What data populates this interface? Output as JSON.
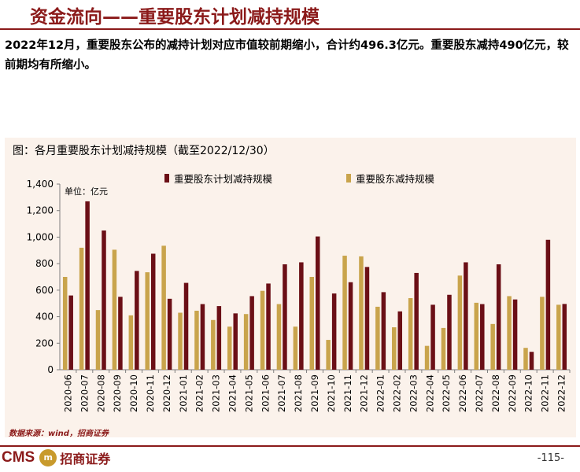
{
  "header": {
    "title": "资金流向——重要股东计划减持规模"
  },
  "summary": "2022年12月，重要股东公布的减持计划对应市值较前期缩小，合计约496.3亿元。重要股东减持490亿元，较前期均有所缩小。",
  "footer": {
    "source": "数据来源：wind，招商证券",
    "logo_text": "CMS",
    "logo_mark": "m",
    "logo_name": "招商证券",
    "page": "-115-"
  },
  "chart_data": {
    "type": "bar",
    "title": "图：各月重要股东计划减持规模（截至2022/12/30）",
    "unit_label": "单位：亿元",
    "ylim": [
      0,
      1400
    ],
    "yticks": [
      0,
      200,
      400,
      600,
      800,
      1000,
      1200,
      1400
    ],
    "ytick_labels": [
      "0",
      "200",
      "400",
      "600",
      "800",
      "1,000",
      "1,200",
      "1,400"
    ],
    "grid": false,
    "legend_position": "top",
    "categories": [
      "2020-06",
      "2020-07",
      "2020-08",
      "2020-09",
      "2020-10",
      "2020-11",
      "2020-12",
      "2021-01",
      "2021-02",
      "2021-03",
      "2021-04",
      "2021-05",
      "2021-06",
      "2021-07",
      "2021-08",
      "2021-09",
      "2021-10",
      "2021-11",
      "2021-12",
      "2022-01",
      "2022-02",
      "2022-03",
      "2022-04",
      "2022-05",
      "2022-06",
      "2022-07",
      "2022-08",
      "2022-09",
      "2022-10",
      "2022-11",
      "2022-12"
    ],
    "series": [
      {
        "name": "重要股东减持规模",
        "color": "#c9a44c",
        "values": [
          700,
          920,
          450,
          905,
          410,
          735,
          935,
          430,
          445,
          375,
          325,
          420,
          595,
          495,
          325,
          700,
          225,
          860,
          855,
          475,
          320,
          540,
          180,
          315,
          710,
          505,
          345,
          555,
          165,
          550,
          490
        ]
      },
      {
        "name": "重要股东计划减持规模",
        "color": "#6b0f16",
        "values": [
          560,
          1270,
          1050,
          550,
          745,
          875,
          535,
          655,
          495,
          480,
          425,
          555,
          650,
          795,
          810,
          1005,
          575,
          660,
          775,
          585,
          440,
          730,
          490,
          565,
          810,
          495,
          795,
          530,
          135,
          980,
          496
        ]
      }
    ]
  }
}
